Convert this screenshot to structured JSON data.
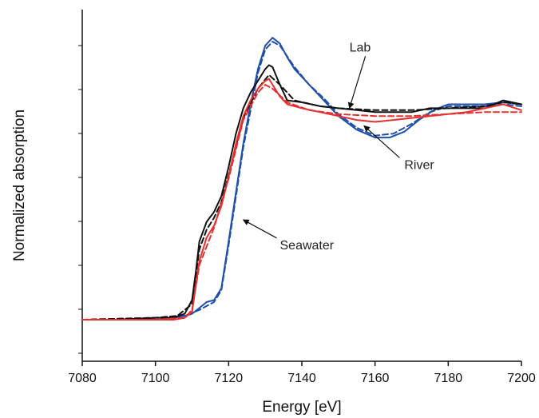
{
  "chart_data": {
    "type": "line",
    "title": "",
    "xlabel": "Energy [eV]",
    "ylabel": "Normalized absorption",
    "xlim": [
      7080,
      7200
    ],
    "ylim": [
      0,
      1.5
    ],
    "x_ticks": [
      7080,
      7100,
      7120,
      7140,
      7160,
      7180,
      7200
    ],
    "y_tick_labels": false,
    "grid": false,
    "legend": "none",
    "series": [
      {
        "color": "#1f4fa8",
        "style": "solid",
        "x": [
          7080,
          7090,
          7100,
          7105,
          7108,
          7110,
          7112,
          7114,
          7116,
          7118,
          7120,
          7122,
          7124,
          7126,
          7128,
          7130,
          7132,
          7134,
          7136,
          7138,
          7140,
          7143,
          7146,
          7150,
          7155,
          7160,
          7164,
          7168,
          7172,
          7176,
          7180,
          7185,
          7190,
          7195,
          7200
        ],
        "y": [
          0,
          0,
          0.01,
          0.01,
          0.02,
          0.03,
          0.06,
          0.09,
          0.1,
          0.16,
          0.4,
          0.65,
          0.9,
          1.1,
          1.28,
          1.4,
          1.44,
          1.41,
          1.34,
          1.28,
          1.24,
          1.18,
          1.12,
          1.04,
          0.97,
          0.93,
          0.93,
          0.96,
          1.02,
          1.07,
          1.1,
          1.1,
          1.1,
          1.11,
          1.1
        ]
      },
      {
        "color": "#1f4fa8",
        "style": "dashed",
        "x": [
          7080,
          7100,
          7108,
          7112,
          7116,
          7118,
          7120,
          7124,
          7128,
          7130,
          7132,
          7134,
          7138,
          7142,
          7146,
          7150,
          7155,
          7160,
          7165,
          7170,
          7175,
          7180,
          7185,
          7190,
          7195,
          7200
        ],
        "y": [
          0,
          0.01,
          0.02,
          0.05,
          0.09,
          0.15,
          0.38,
          0.88,
          1.26,
          1.38,
          1.42,
          1.4,
          1.29,
          1.2,
          1.13,
          1.05,
          0.98,
          0.94,
          0.95,
          1.0,
          1.06,
          1.09,
          1.09,
          1.09,
          1.1,
          1.09
        ]
      },
      {
        "color": "#111111",
        "style": "solid",
        "x": [
          7080,
          7090,
          7100,
          7105,
          7108,
          7110,
          7111,
          7112,
          7114,
          7116,
          7118,
          7120,
          7122,
          7124,
          7126,
          7128,
          7130,
          7131,
          7132,
          7134,
          7136,
          7140,
          7145,
          7150,
          7155,
          7160,
          7165,
          7170,
          7175,
          7180,
          7185,
          7190,
          7195,
          7200
        ],
        "y": [
          0,
          0,
          0.01,
          0.01,
          0.03,
          0.1,
          0.24,
          0.4,
          0.5,
          0.55,
          0.63,
          0.78,
          0.95,
          1.08,
          1.16,
          1.22,
          1.28,
          1.3,
          1.29,
          1.2,
          1.12,
          1.11,
          1.09,
          1.08,
          1.07,
          1.06,
          1.06,
          1.06,
          1.08,
          1.08,
          1.08,
          1.08,
          1.12,
          1.1
        ]
      },
      {
        "color": "#111111",
        "style": "dashed",
        "x": [
          7080,
          7100,
          7106,
          7110,
          7112,
          7114,
          7116,
          7118,
          7120,
          7124,
          7128,
          7131,
          7134,
          7138,
          7145,
          7150,
          7160,
          7170,
          7180,
          7190,
          7195,
          7200
        ],
        "y": [
          0,
          0.01,
          0.02,
          0.08,
          0.36,
          0.46,
          0.52,
          0.6,
          0.74,
          1.03,
          1.18,
          1.25,
          1.2,
          1.12,
          1.09,
          1.08,
          1.07,
          1.07,
          1.08,
          1.09,
          1.11,
          1.1
        ]
      },
      {
        "color": "#e53030",
        "style": "solid",
        "x": [
          7080,
          7090,
          7100,
          7105,
          7108,
          7110,
          7112,
          7114,
          7116,
          7118,
          7120,
          7122,
          7124,
          7126,
          7128,
          7130,
          7131,
          7132,
          7134,
          7136,
          7140,
          7145,
          7150,
          7155,
          7160,
          7165,
          7170,
          7175,
          7180,
          7185,
          7190,
          7195,
          7200
        ],
        "y": [
          0,
          0,
          0,
          0,
          0.01,
          0.04,
          0.3,
          0.42,
          0.48,
          0.58,
          0.73,
          0.9,
          1.04,
          1.12,
          1.18,
          1.22,
          1.23,
          1.2,
          1.14,
          1.1,
          1.08,
          1.06,
          1.04,
          1.02,
          1.01,
          1.02,
          1.03,
          1.04,
          1.05,
          1.06,
          1.08,
          1.1,
          1.07
        ]
      },
      {
        "color": "#e53030",
        "style": "dashed",
        "x": [
          7080,
          7100,
          7108,
          7110,
          7112,
          7116,
          7120,
          7124,
          7128,
          7130,
          7132,
          7136,
          7142,
          7150,
          7160,
          7170,
          7180,
          7190,
          7200
        ],
        "y": [
          0,
          0,
          0.01,
          0.05,
          0.28,
          0.47,
          0.72,
          1.02,
          1.16,
          1.2,
          1.18,
          1.11,
          1.07,
          1.05,
          1.04,
          1.04,
          1.05,
          1.06,
          1.06
        ]
      }
    ],
    "annotations": [
      {
        "text": "Lab",
        "x": 7153,
        "y": 1.37,
        "arrow_to": [
          7153,
          1.08
        ]
      },
      {
        "text": "River",
        "x": 7168,
        "y": 0.77,
        "arrow_to": [
          7157,
          0.99
        ]
      },
      {
        "text": "Seawater",
        "x": 7134,
        "y": 0.36,
        "arrow_to": [
          7124,
          0.51
        ]
      }
    ]
  }
}
